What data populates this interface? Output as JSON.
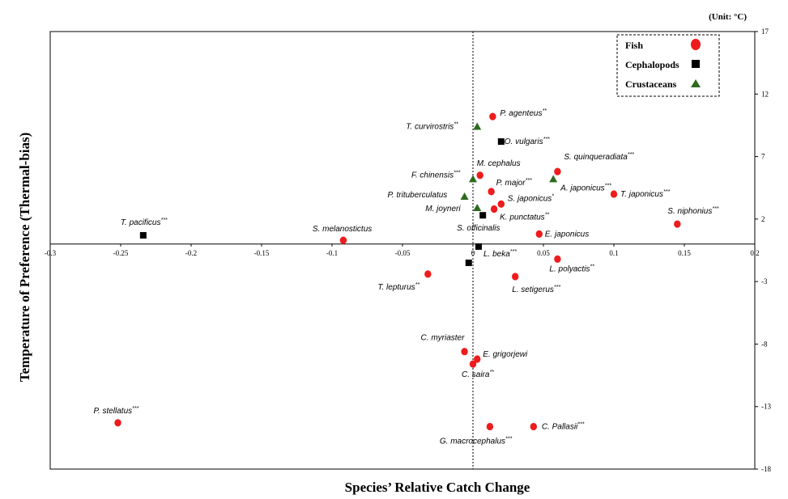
{
  "chart_data": {
    "type": "scatter",
    "unit_note": "(Unit: °C)",
    "xlabel": "Species’ Relative Catch Change",
    "ylabel": "Temperature of Preference (Thermal-bias)",
    "xlim": [
      -0.3,
      0.2
    ],
    "ylim": [
      -18,
      17
    ],
    "x_ticks": [
      -0.3,
      -0.25,
      -0.2,
      -0.15,
      -0.1,
      -0.05,
      0,
      0.05,
      0.1,
      0.15,
      0.2
    ],
    "x_tick_labels": [
      "-0.3",
      "-0.25",
      "-0.2",
      "-0.15",
      "-0.1",
      "-0.05",
      "0",
      "0.05",
      "0.1",
      "0.15",
      "0.2"
    ],
    "y_ticks": [
      17,
      12,
      7,
      2,
      -3,
      -8,
      -13,
      -18
    ],
    "y_tick_labels": [
      "17",
      "12",
      "7",
      "2",
      "-3",
      "-8",
      "-13",
      "-18"
    ],
    "grid": false,
    "legend_position": "top-right",
    "series": [
      {
        "name": "Fish",
        "marker": "circle",
        "color": "#ee1c1c",
        "points": [
          {
            "label": "P. agenteus",
            "sig": "**",
            "x": 0.014,
            "y": 10.2
          },
          {
            "label": "S. quinqueradiata",
            "sig": "***",
            "x": 0.06,
            "y": 5.8
          },
          {
            "label": "M. cephalus",
            "sig": "",
            "x": 0.005,
            "y": 5.5
          },
          {
            "label": "P. major",
            "sig": "***",
            "x": 0.013,
            "y": 4.2
          },
          {
            "label": "T. japonicus",
            "sig": "***",
            "x": 0.1,
            "y": 4.0
          },
          {
            "label": "S. japonicus",
            "sig": "*",
            "x": 0.02,
            "y": 3.2
          },
          {
            "label": "K. punctatus",
            "sig": "**",
            "x": 0.015,
            "y": 2.8
          },
          {
            "label": "S. niphonius",
            "sig": "***",
            "x": 0.145,
            "y": 1.6
          },
          {
            "label": "S. melanostictus",
            "sig": "",
            "x": -0.092,
            "y": 0.3
          },
          {
            "label": "E. japonicus",
            "sig": "",
            "x": 0.047,
            "y": 0.8
          },
          {
            "label": "L. polyactis",
            "sig": "**",
            "x": 0.06,
            "y": -1.2
          },
          {
            "label": "T. lepturus",
            "sig": "**",
            "x": -0.032,
            "y": -2.4
          },
          {
            "label": "L. setigerus",
            "sig": "***",
            "x": 0.03,
            "y": -2.6
          },
          {
            "label": "C. myriaster",
            "sig": "",
            "x": -0.006,
            "y": -8.6
          },
          {
            "label": "E. grigorjewi",
            "sig": "",
            "x": 0.003,
            "y": -9.2
          },
          {
            "label": "C. saira",
            "sig": "**",
            "x": 0.0,
            "y": -9.6
          },
          {
            "label": "P. stellatus",
            "sig": "***",
            "x": -0.252,
            "y": -14.3
          },
          {
            "label": "G. macrocephalus",
            "sig": "***",
            "x": 0.012,
            "y": -14.6
          },
          {
            "label": "C. Pallasii",
            "sig": "***",
            "x": 0.043,
            "y": -14.6
          }
        ]
      },
      {
        "name": "Cephalopods",
        "marker": "square",
        "color": "#000000",
        "points": [
          {
            "label": "O. vulgaris",
            "sig": "***",
            "x": 0.02,
            "y": 8.2
          },
          {
            "label": "T. pacificus",
            "sig": "***",
            "x": -0.234,
            "y": 0.7
          },
          {
            "label": "S. officinalis",
            "sig": "",
            "x": 0.007,
            "y": 2.3
          },
          {
            "label": "L. beka",
            "sig": "***",
            "x": 0.004,
            "y": -0.2
          },
          {
            "label": "",
            "sig": "",
            "x": -0.003,
            "y": -1.5
          }
        ]
      },
      {
        "name": "Crustaceans",
        "marker": "triangle",
        "color": "#2d6a1f",
        "points": [
          {
            "label": "T. curvirostris",
            "sig": "**",
            "x": 0.003,
            "y": 9.4
          },
          {
            "label": "F. chinensis",
            "sig": "***",
            "x": 0.0,
            "y": 5.2
          },
          {
            "label": "A. japonicus",
            "sig": "***",
            "x": 0.057,
            "y": 5.2
          },
          {
            "label": "P. trituberculatus",
            "sig": "",
            "x": -0.006,
            "y": 3.8
          },
          {
            "label": "M. joyneri",
            "sig": "",
            "x": 0.003,
            "y": 2.9
          }
        ]
      }
    ]
  }
}
